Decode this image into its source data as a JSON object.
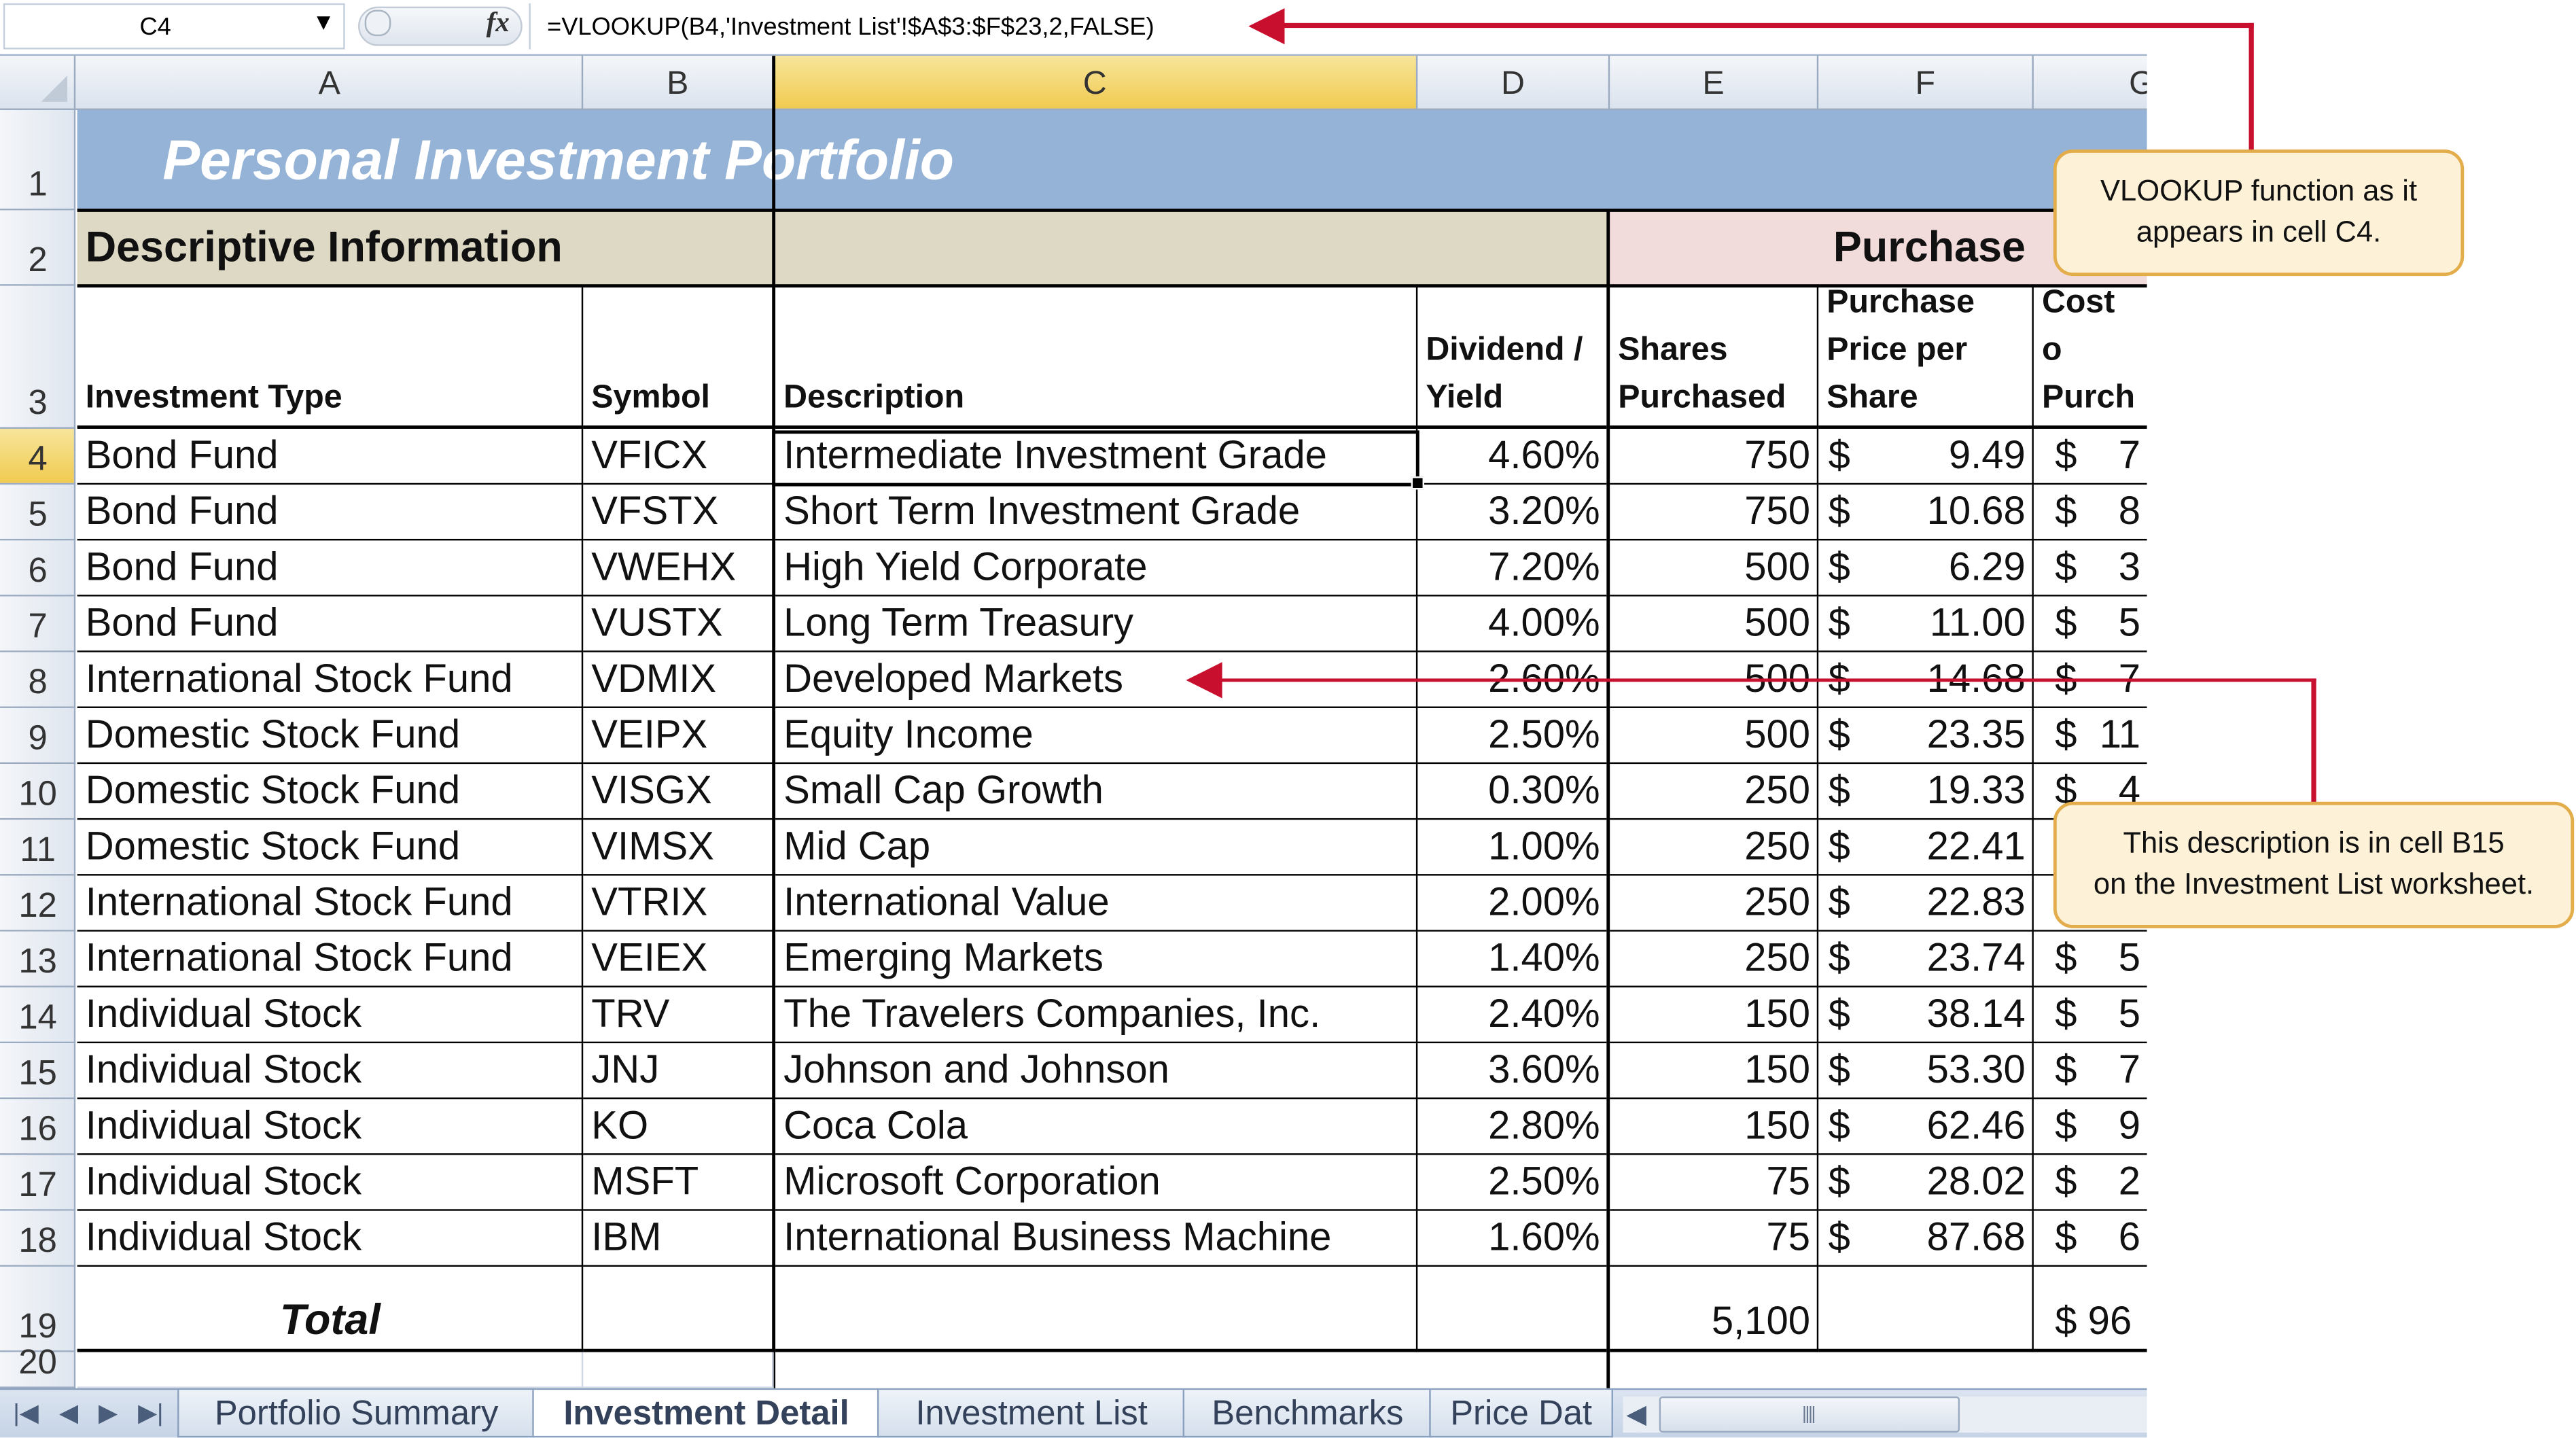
{
  "formula_bar": {
    "name_box": "C4",
    "fx": "fx",
    "formula": "=VLOOKUP(B4,'Investment List'!$A$3:$F$23,2,FALSE)"
  },
  "columns": [
    "A",
    "B",
    "C",
    "D",
    "E",
    "F",
    "G"
  ],
  "rows": [
    "1",
    "2",
    "3",
    "4",
    "5",
    "6",
    "7",
    "8",
    "9",
    "10",
    "11",
    "12",
    "13",
    "14",
    "15",
    "16",
    "17",
    "18",
    "19",
    "20"
  ],
  "sheet": {
    "title": "Personal Investment Portfolio",
    "section_descriptive": "Descriptive Information",
    "section_purchase": "Purchase",
    "headers": {
      "investment_type": "Investment Type",
      "symbol": "Symbol",
      "description": "Description",
      "dividend_yield": "Dividend / Yield",
      "shares_purchased": "Shares Purchased",
      "purchase_price": "Purchase Price per Share",
      "cost_of_purchase": "Cost o Purch"
    },
    "data_rows": [
      {
        "type": "Bond Fund",
        "symbol": "VFICX",
        "description": "Intermediate Investment Grade",
        "yield": "4.60%",
        "shares": "750",
        "price": "9.49",
        "cost": "7"
      },
      {
        "type": "Bond Fund",
        "symbol": "VFSTX",
        "description": "Short Term Investment Grade",
        "yield": "3.20%",
        "shares": "750",
        "price": "10.68",
        "cost": "8"
      },
      {
        "type": "Bond Fund",
        "symbol": "VWEHX",
        "description": "High Yield Corporate",
        "yield": "7.20%",
        "shares": "500",
        "price": "6.29",
        "cost": "3"
      },
      {
        "type": "Bond Fund",
        "symbol": "VUSTX",
        "description": "Long Term Treasury",
        "yield": "4.00%",
        "shares": "500",
        "price": "11.00",
        "cost": "5"
      },
      {
        "type": "International Stock Fund",
        "symbol": "VDMIX",
        "description": "Developed Markets",
        "yield": "2.60%",
        "shares": "500",
        "price": "14.68",
        "cost": "7"
      },
      {
        "type": "Domestic Stock Fund",
        "symbol": "VEIPX",
        "description": "Equity Income",
        "yield": "2.50%",
        "shares": "500",
        "price": "23.35",
        "cost": "11"
      },
      {
        "type": "Domestic Stock Fund",
        "symbol": "VISGX",
        "description": "Small Cap Growth",
        "yield": "0.30%",
        "shares": "250",
        "price": "19.33",
        "cost": "4"
      },
      {
        "type": "Domestic Stock Fund",
        "symbol": "VIMSX",
        "description": "Mid Cap",
        "yield": "1.00%",
        "shares": "250",
        "price": "22.41",
        "cost": ""
      },
      {
        "type": "International Stock Fund",
        "symbol": "VTRIX",
        "description": "International Value",
        "yield": "2.00%",
        "shares": "250",
        "price": "22.83",
        "cost": ""
      },
      {
        "type": "International Stock Fund",
        "symbol": "VEIEX",
        "description": "Emerging Markets",
        "yield": "1.40%",
        "shares": "250",
        "price": "23.74",
        "cost": "5"
      },
      {
        "type": "Individual Stock",
        "symbol": "TRV",
        "description": "The Travelers Companies, Inc.",
        "yield": "2.40%",
        "shares": "150",
        "price": "38.14",
        "cost": "5"
      },
      {
        "type": "Individual Stock",
        "symbol": "JNJ",
        "description": "Johnson and Johnson",
        "yield": "3.60%",
        "shares": "150",
        "price": "53.30",
        "cost": "7"
      },
      {
        "type": "Individual Stock",
        "symbol": "KO",
        "description": "Coca Cola",
        "yield": "2.80%",
        "shares": "150",
        "price": "62.46",
        "cost": "9"
      },
      {
        "type": "Individual Stock",
        "symbol": "MSFT",
        "description": "Microsoft Corporation",
        "yield": "2.50%",
        "shares": "75",
        "price": "28.02",
        "cost": "2"
      },
      {
        "type": "Individual Stock",
        "symbol": "IBM",
        "description": "International Business Machine",
        "yield": "1.60%",
        "shares": "75",
        "price": "87.68",
        "cost": "6"
      }
    ],
    "total_label": "Total",
    "total_shares": "5,100",
    "total_cost": "$ 96",
    "currency": "$"
  },
  "tabs": [
    "Portfolio Summary",
    "Investment Detail",
    "Investment List",
    "Benchmarks",
    "Price Dat"
  ],
  "active_tab": "Investment Detail",
  "callouts": {
    "formula_note": [
      "VLOOKUP function as it",
      "appears in cell C4."
    ],
    "description_note": [
      "This description is in cell B15",
      "on the Investment List worksheet."
    ]
  },
  "colors": {
    "title_band": "#95b3d7",
    "descriptive_band": "#ddd9c4",
    "purchase_band": "#f2dcdb",
    "callout_fill": "#fdf1d8",
    "callout_border": "#e4ad4c",
    "arrow": "#c8102e",
    "selection_header": "#f1cb50"
  }
}
